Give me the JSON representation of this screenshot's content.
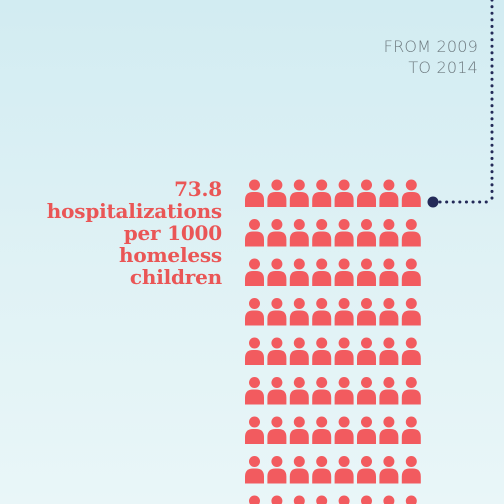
{
  "period": {
    "line1": "FROM 2009",
    "line2": "TO 2014"
  },
  "stat": {
    "value": "73.8",
    "line2": "hospitalizations",
    "line3": "per 1000",
    "line4": "homeless",
    "line5": "children"
  },
  "pictogram": {
    "icon": "person-icon",
    "columns": 8,
    "rows_visible": 9,
    "color": "#f25b5f"
  },
  "colors": {
    "accent": "#ea5656",
    "connector": "#232a58",
    "muted_text": "#6f7b80"
  }
}
